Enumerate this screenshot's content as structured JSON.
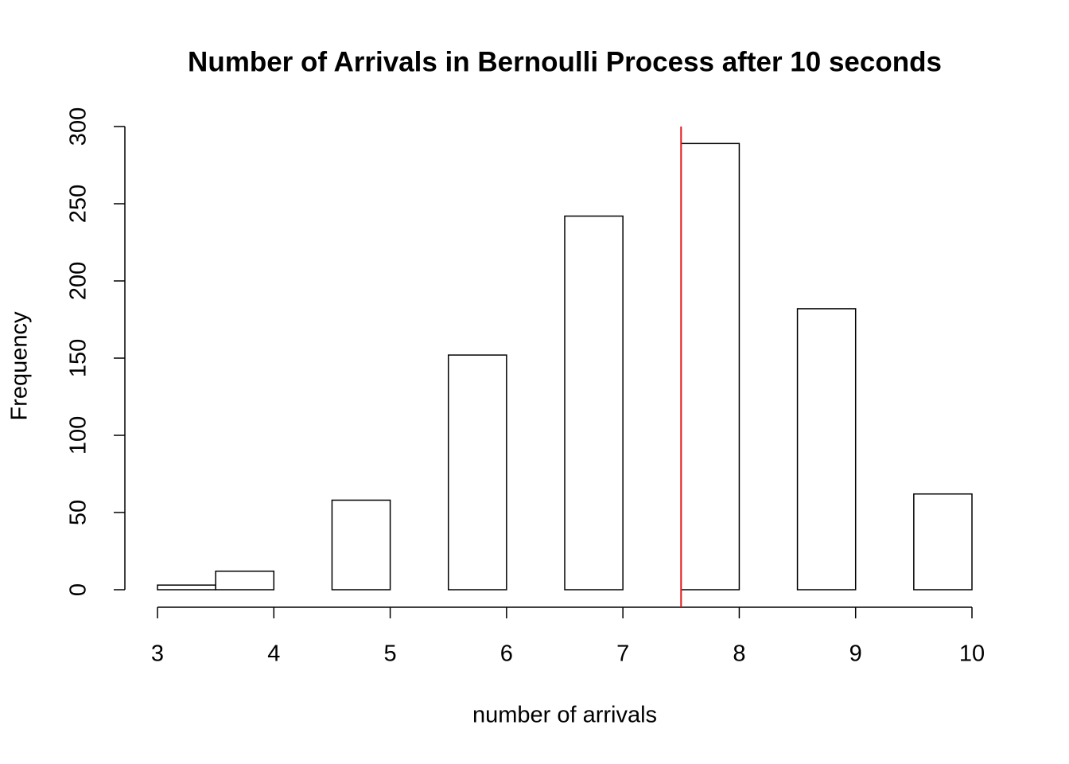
{
  "chart_data": {
    "type": "histogram",
    "title": "Number of Arrivals in Bernoulli Process after 10 seconds",
    "x_label": "number of arrivals",
    "y_label": "Frequency",
    "bins": [
      3,
      3.5,
      4,
      4.5,
      5,
      5.5,
      6,
      6.5,
      7,
      7.5,
      8,
      8.5,
      9,
      9.5,
      10
    ],
    "values": [
      3,
      12,
      0,
      58,
      0,
      152,
      0,
      242,
      0,
      289,
      0,
      182,
      0,
      62
    ],
    "color": "#ffffff",
    "xlim": [
      3,
      10
    ],
    "xticks": [
      3,
      4,
      5,
      6,
      7,
      8,
      9,
      10
    ],
    "ylim": [
      0,
      300
    ],
    "yticks": [
      0,
      50,
      100,
      150,
      200,
      250,
      300
    ],
    "reference_line": {
      "x": 7.5,
      "color": "#e41a1c"
    }
  }
}
